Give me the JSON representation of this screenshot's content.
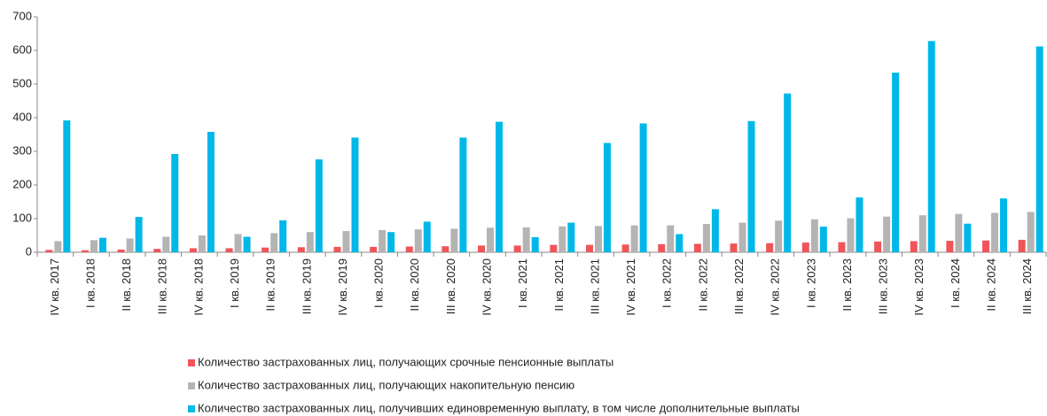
{
  "chart_data": {
    "type": "bar",
    "categories": [
      "IV кв. 2017",
      "I кв. 2018",
      "II кв. 2018",
      "III кв. 2018",
      "IV кв. 2018",
      "I кв. 2019",
      "II кв. 2019",
      "III кв. 2019",
      "IV кв. 2019",
      "I кв. 2020",
      "II кв. 2020",
      "III кв. 2020",
      "IV кв. 2020",
      "I кв. 2021",
      "II кв. 2021",
      "III кв. 2021",
      "IV кв. 2021",
      "I кв. 2022",
      "II кв. 2022",
      "III кв. 2022",
      "IV кв. 2022",
      "I кв. 2023",
      "II кв. 2023",
      "III кв. 2023",
      "IV кв. 2023",
      "I кв. 2024",
      "II кв. 2024",
      "III кв. 2024"
    ],
    "series": [
      {
        "name": "Количество застрахованных лиц, получающих срочные пенсионные выплаты",
        "color": "#f0555a",
        "values": [
          7,
          6,
          8,
          10,
          12,
          12,
          14,
          15,
          16,
          16,
          17,
          18,
          20,
          20,
          22,
          22,
          23,
          24,
          25,
          26,
          27,
          29,
          30,
          32,
          33,
          34,
          35,
          37
        ]
      },
      {
        "name": "Количество застрахованных лиц, получающих накопительную пенсию",
        "color": "#b4b4b4",
        "values": [
          33,
          36,
          41,
          46,
          50,
          54,
          57,
          60,
          63,
          66,
          68,
          70,
          73,
          74,
          77,
          78,
          80,
          80,
          84,
          88,
          94,
          98,
          101,
          106,
          110,
          114,
          117,
          120
        ]
      },
      {
        "name": "Количество застрахованных лиц, получивших единовременную выплату, в том числе дополнительные выплаты",
        "color": "#00b8e8",
        "values": [
          392,
          43,
          105,
          292,
          358,
          46,
          95,
          276,
          341,
          60,
          91,
          341,
          388,
          45,
          88,
          325,
          383,
          54,
          128,
          390,
          472,
          76,
          163,
          534,
          628,
          85,
          160,
          612
        ]
      }
    ],
    "ylim": [
      0,
      700
    ],
    "yticks": [
      0,
      100,
      200,
      300,
      400,
      500,
      600,
      700
    ]
  }
}
